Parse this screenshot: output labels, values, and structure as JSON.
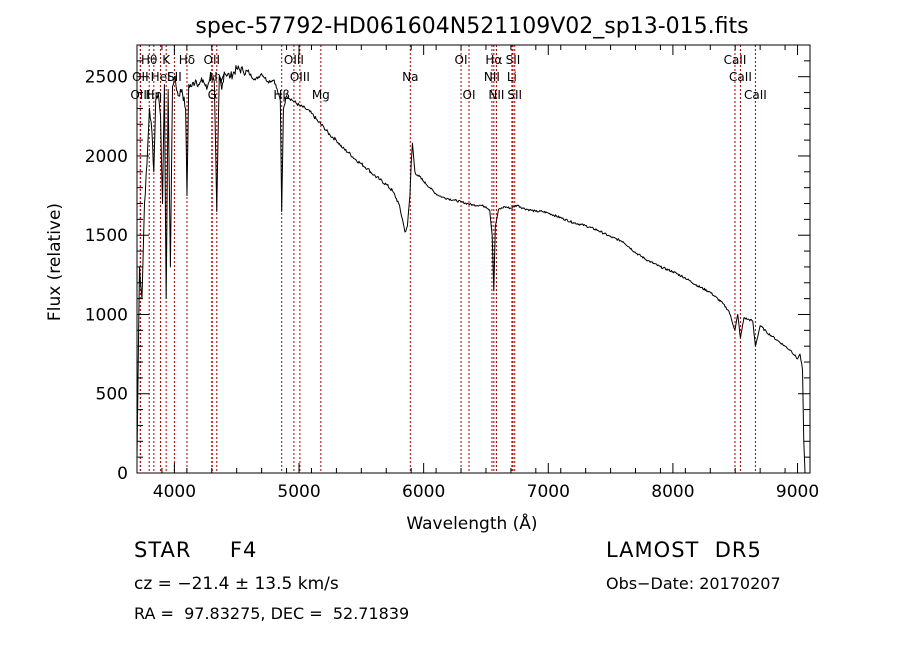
{
  "chart_data": {
    "type": "line",
    "title": "spec-57792-HD061604N521109V02_sp13-015.fits",
    "xlabel": "Wavelength (Å)",
    "ylabel": "Flux (relative)",
    "xlim": [
      3700,
      9100
    ],
    "ylim": [
      0,
      2700
    ],
    "grid": false,
    "x_ticks": [
      4000,
      5000,
      6000,
      7000,
      8000,
      9000
    ],
    "y_ticks": [
      0,
      500,
      1000,
      1500,
      2000,
      2500
    ],
    "series": [
      {
        "x": [
          3700,
          3720,
          3740,
          3760,
          3780,
          3800,
          3820,
          3835,
          3850,
          3870,
          3889,
          3905,
          3920,
          3934,
          3950,
          3968,
          3985,
          4000,
          4030,
          4060,
          4090,
          4101,
          4115,
          4140,
          4170,
          4200,
          4230,
          4260,
          4290,
          4320,
          4340,
          4360,
          4380,
          4400,
          4450,
          4500,
          4550,
          4600,
          4650,
          4700,
          4750,
          4800,
          4850,
          4861,
          4875,
          4900,
          4950,
          5000,
          5050,
          5100,
          5150,
          5200,
          5250,
          5300,
          5350,
          5400,
          5450,
          5500,
          5550,
          5600,
          5650,
          5700,
          5750,
          5800,
          5830,
          5850,
          5870,
          5890,
          5900,
          5910,
          5930,
          5950,
          6000,
          6050,
          6100,
          6150,
          6200,
          6250,
          6300,
          6350,
          6400,
          6450,
          6500,
          6530,
          6550,
          6563,
          6575,
          6600,
          6650,
          6700,
          6750,
          6800,
          6850,
          6900,
          6950,
          7000,
          7100,
          7200,
          7300,
          7400,
          7500,
          7600,
          7700,
          7800,
          7900,
          8000,
          8100,
          8200,
          8300,
          8400,
          8450,
          8498,
          8520,
          8542,
          8570,
          8600,
          8640,
          8662,
          8700,
          8750,
          8800,
          8850,
          8900,
          8950,
          9000,
          9020,
          9040,
          9050,
          9060
        ],
        "y": [
          100,
          1300,
          1100,
          1700,
          1950,
          2300,
          2150,
          1900,
          2350,
          2400,
          2250,
          1700,
          2450,
          1100,
          2420,
          1300,
          2440,
          2500,
          2380,
          2420,
          2300,
          1750,
          2450,
          2440,
          2480,
          2450,
          2480,
          2420,
          2520,
          2470,
          1650,
          2500,
          2420,
          2530,
          2500,
          2550,
          2540,
          2520,
          2480,
          2520,
          2470,
          2480,
          2350,
          1650,
          2300,
          2380,
          2350,
          2320,
          2300,
          2270,
          2220,
          2180,
          2130,
          2100,
          2050,
          2020,
          1980,
          1950,
          1920,
          1880,
          1850,
          1820,
          1780,
          1700,
          1600,
          1520,
          1560,
          1750,
          1950,
          2080,
          1900,
          1880,
          1840,
          1800,
          1760,
          1740,
          1730,
          1720,
          1710,
          1700,
          1690,
          1690,
          1680,
          1660,
          1500,
          1150,
          1550,
          1660,
          1680,
          1670,
          1690,
          1670,
          1660,
          1650,
          1650,
          1640,
          1610,
          1580,
          1560,
          1530,
          1490,
          1460,
          1390,
          1340,
          1300,
          1270,
          1230,
          1180,
          1140,
          1070,
          1020,
          900,
          1000,
          850,
          980,
          970,
          960,
          800,
          930,
          890,
          860,
          830,
          800,
          770,
          720,
          750,
          650,
          200,
          0
        ]
      }
    ],
    "lines": [
      {
        "name": "Hθ",
        "x": 3798,
        "row": 0
      },
      {
        "name": "K",
        "x": 3934,
        "row": 0
      },
      {
        "name": "Hδ",
        "x": 4101,
        "row": 0
      },
      {
        "name": "OII",
        "x": 4300,
        "row": 0
      },
      {
        "name": "OIII",
        "x": 4959,
        "row": 0
      },
      {
        "name": "OI",
        "x": 6300,
        "row": 0
      },
      {
        "name": "Hα",
        "x": 6563,
        "row": 0
      },
      {
        "name": "SII",
        "x": 6717,
        "row": 0
      },
      {
        "name": "CaII",
        "x": 8498,
        "row": 0
      },
      {
        "name": "OII",
        "x": 3727,
        "row": 1
      },
      {
        "name": "HeI",
        "x": 3889,
        "row": 1
      },
      {
        "name": "SII",
        "x": 4000,
        "row": 1
      },
      {
        "name": "Hγ",
        "x": 4340,
        "row": 1
      },
      {
        "name": "OIII",
        "x": 5007,
        "row": 1
      },
      {
        "name": "Na",
        "x": 5893,
        "row": 1
      },
      {
        "name": "NII",
        "x": 6548,
        "row": 1
      },
      {
        "name": "Li",
        "x": 6708,
        "row": 1
      },
      {
        "name": "CaII",
        "x": 8542,
        "row": 1
      },
      {
        "name": "OIII",
        "x": 3727,
        "row": 2
      },
      {
        "name": "Hη",
        "x": 3835,
        "row": 2
      },
      {
        "name": "G",
        "x": 4304,
        "row": 2
      },
      {
        "name": "Hβ",
        "x": 4861,
        "row": 2
      },
      {
        "name": "Mg",
        "x": 5175,
        "row": 2
      },
      {
        "name": "OI",
        "x": 6364,
        "row": 2
      },
      {
        "name": "NII",
        "x": 6584,
        "row": 2
      },
      {
        "name": "SII",
        "x": 6731,
        "row": 2
      },
      {
        "name": "CaII",
        "x": 8662,
        "row": 2
      }
    ],
    "line_color": "#aa0000"
  },
  "footer": {
    "star": "STAR     F4",
    "survey": "LAMOST  DR5",
    "cz": "cz = −21.4 ± 13.5 km/s",
    "obs_date": "Obs−Date: 20170207",
    "radec": "RA =  97.83275, DEC =  52.71839"
  }
}
